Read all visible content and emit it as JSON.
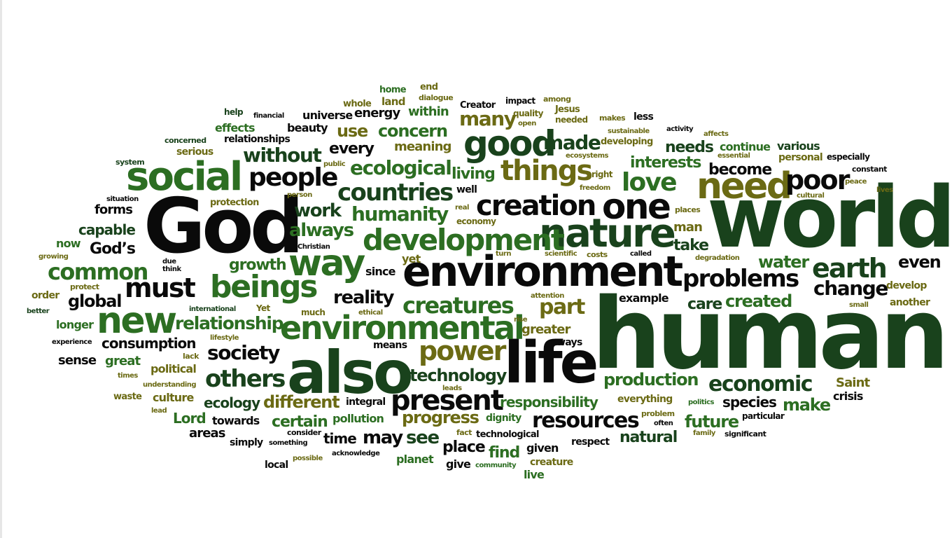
{
  "colors": {
    "black": "#0a0a0a",
    "dark_green": "#19421c",
    "mid_green": "#2c6e22",
    "light_green": "#4a8a2a",
    "olive": "#6b6a14"
  },
  "words": [
    {
      "text": "human",
      "c": "dark_green"
    },
    {
      "text": "world",
      "c": "dark_green"
    },
    {
      "text": "God",
      "c": "black"
    },
    {
      "text": "environment",
      "c": "black"
    },
    {
      "text": "also",
      "c": "dark_green"
    },
    {
      "text": "life",
      "c": "black"
    },
    {
      "text": "nature",
      "c": "dark_green"
    },
    {
      "text": "social",
      "c": "mid_green"
    },
    {
      "text": "environmental",
      "c": "mid_green"
    },
    {
      "text": "good",
      "c": "dark_green"
    },
    {
      "text": "need",
      "c": "olive"
    },
    {
      "text": "creation",
      "c": "black"
    },
    {
      "text": "one",
      "c": "black"
    },
    {
      "text": "new",
      "c": "mid_green"
    },
    {
      "text": "way",
      "c": "mid_green"
    },
    {
      "text": "beings",
      "c": "mid_green"
    },
    {
      "text": "development",
      "c": "mid_green"
    },
    {
      "text": "things",
      "c": "olive"
    },
    {
      "text": "present",
      "c": "black"
    },
    {
      "text": "power",
      "c": "olive"
    },
    {
      "text": "must",
      "c": "black"
    },
    {
      "text": "people",
      "c": "black"
    },
    {
      "text": "countries",
      "c": "dark_green"
    },
    {
      "text": "poor",
      "c": "black"
    },
    {
      "text": "earth",
      "c": "dark_green"
    },
    {
      "text": "problems",
      "c": "black"
    },
    {
      "text": "common",
      "c": "mid_green"
    },
    {
      "text": "love",
      "c": "mid_green"
    },
    {
      "text": "creatures",
      "c": "mid_green"
    },
    {
      "text": "economic",
      "c": "dark_green"
    },
    {
      "text": "others",
      "c": "dark_green"
    },
    {
      "text": "society",
      "c": "black"
    },
    {
      "text": "humanity",
      "c": "mid_green"
    },
    {
      "text": "resources",
      "c": "black"
    },
    {
      "text": "ecological",
      "c": "mid_green"
    },
    {
      "text": "made",
      "c": "dark_green"
    },
    {
      "text": "relationship",
      "c": "mid_green"
    },
    {
      "text": "reality",
      "c": "black"
    },
    {
      "text": "part",
      "c": "olive"
    },
    {
      "text": "without",
      "c": "dark_green"
    },
    {
      "text": "different",
      "c": "olive"
    },
    {
      "text": "technology",
      "c": "dark_green"
    },
    {
      "text": "production",
      "c": "mid_green"
    },
    {
      "text": "change",
      "c": "black"
    },
    {
      "text": "progress",
      "c": "olive"
    },
    {
      "text": "many",
      "c": "olive"
    },
    {
      "text": "always",
      "c": "mid_green"
    },
    {
      "text": "growth",
      "c": "mid_green"
    },
    {
      "text": "global",
      "c": "black"
    },
    {
      "text": "work",
      "c": "dark_green"
    },
    {
      "text": "use",
      "c": "olive"
    },
    {
      "text": "concern",
      "c": "mid_green"
    },
    {
      "text": "even",
      "c": "black"
    },
    {
      "text": "make",
      "c": "mid_green"
    },
    {
      "text": "future",
      "c": "mid_green"
    },
    {
      "text": "water",
      "c": "mid_green"
    },
    {
      "text": "created",
      "c": "mid_green"
    },
    {
      "text": "care",
      "c": "dark_green"
    },
    {
      "text": "take",
      "c": "dark_green"
    },
    {
      "text": "needs",
      "c": "dark_green"
    },
    {
      "text": "become",
      "c": "black"
    },
    {
      "text": "interests",
      "c": "mid_green"
    },
    {
      "text": "living",
      "c": "mid_green"
    },
    {
      "text": "every",
      "c": "black"
    },
    {
      "text": "consumption",
      "c": "black"
    },
    {
      "text": "responsibility",
      "c": "mid_green"
    },
    {
      "text": "ecology",
      "c": "dark_green"
    },
    {
      "text": "certain",
      "c": "mid_green"
    },
    {
      "text": "species",
      "c": "black"
    },
    {
      "text": "may",
      "c": "black"
    },
    {
      "text": "see",
      "c": "dark_green"
    },
    {
      "text": "time",
      "c": "black"
    },
    {
      "text": "place",
      "c": "black"
    },
    {
      "text": "find",
      "c": "mid_green"
    },
    {
      "text": "natural",
      "c": "dark_green"
    },
    {
      "text": "God’s",
      "c": "black"
    },
    {
      "text": "capable",
      "c": "dark_green"
    },
    {
      "text": "forms",
      "c": "black"
    },
    {
      "text": "longer",
      "c": "mid_green"
    },
    {
      "text": "sense",
      "c": "black"
    },
    {
      "text": "great",
      "c": "mid_green"
    },
    {
      "text": "culture",
      "c": "olive"
    },
    {
      "text": "political",
      "c": "olive"
    },
    {
      "text": "Lord",
      "c": "mid_green"
    },
    {
      "text": "towards",
      "c": "black"
    },
    {
      "text": "areas",
      "c": "black"
    },
    {
      "text": "simply",
      "c": "black"
    },
    {
      "text": "pollution",
      "c": "mid_green"
    },
    {
      "text": "integral",
      "c": "black"
    },
    {
      "text": "greater",
      "c": "olive"
    },
    {
      "text": "ways",
      "c": "black"
    },
    {
      "text": "means",
      "c": "black"
    },
    {
      "text": "yet",
      "c": "olive"
    },
    {
      "text": "since",
      "c": "black"
    },
    {
      "text": "example",
      "c": "black"
    },
    {
      "text": "Saint",
      "c": "olive"
    },
    {
      "text": "crisis",
      "c": "black"
    },
    {
      "text": "meaning",
      "c": "olive"
    },
    {
      "text": "within",
      "c": "mid_green"
    },
    {
      "text": "energy",
      "c": "black"
    },
    {
      "text": "universe",
      "c": "black"
    },
    {
      "text": "beauty",
      "c": "black"
    },
    {
      "text": "effects",
      "c": "mid_green"
    },
    {
      "text": "serious",
      "c": "olive"
    },
    {
      "text": "relationships",
      "c": "black"
    },
    {
      "text": "man",
      "c": "olive"
    },
    {
      "text": "now",
      "c": "mid_green"
    },
    {
      "text": "continue",
      "c": "mid_green"
    },
    {
      "text": "various",
      "c": "dark_green"
    },
    {
      "text": "personal",
      "c": "olive"
    },
    {
      "text": "develop",
      "c": "olive"
    },
    {
      "text": "another",
      "c": "olive"
    },
    {
      "text": "dignity",
      "c": "mid_green"
    },
    {
      "text": "give",
      "c": "black"
    },
    {
      "text": "planet",
      "c": "mid_green"
    },
    {
      "text": "live",
      "c": "mid_green"
    },
    {
      "text": "creature",
      "c": "olive"
    },
    {
      "text": "given",
      "c": "black"
    },
    {
      "text": "respect",
      "c": "black"
    },
    {
      "text": "local",
      "c": "black"
    },
    {
      "text": "everything",
      "c": "olive"
    },
    {
      "text": "order",
      "c": "olive"
    },
    {
      "text": "Yet",
      "c": "olive"
    },
    {
      "text": "much",
      "c": "olive"
    },
    {
      "text": "well",
      "c": "black"
    },
    {
      "text": "right",
      "c": "olive"
    },
    {
      "text": "less",
      "c": "black"
    },
    {
      "text": "home",
      "c": "mid_green"
    },
    {
      "text": "end",
      "c": "olive"
    },
    {
      "text": "land",
      "c": "olive"
    },
    {
      "text": "whole",
      "c": "olive"
    },
    {
      "text": "help",
      "c": "dark_green"
    },
    {
      "text": "impact",
      "c": "black"
    },
    {
      "text": "Creator",
      "c": "black"
    },
    {
      "text": "Jesus",
      "c": "olive"
    },
    {
      "text": "needed",
      "c": "olive"
    },
    {
      "text": "quality",
      "c": "olive"
    },
    {
      "text": "developing",
      "c": "olive"
    },
    {
      "text": "especially",
      "c": "black"
    },
    {
      "text": "constant",
      "c": "black"
    },
    {
      "text": "technological",
      "c": "black"
    },
    {
      "text": "particular",
      "c": "black"
    },
    {
      "text": "significant",
      "c": "black"
    },
    {
      "text": "concerned",
      "c": "dark_green"
    },
    {
      "text": "system",
      "c": "dark_green"
    },
    {
      "text": "financial",
      "c": "black"
    },
    {
      "text": "protection",
      "c": "olive"
    },
    {
      "text": "situation",
      "c": "black"
    },
    {
      "text": "growing",
      "c": "olive"
    },
    {
      "text": "Christian",
      "c": "black"
    },
    {
      "text": "think",
      "c": "black"
    },
    {
      "text": "due",
      "c": "black"
    },
    {
      "text": "protect",
      "c": "olive"
    },
    {
      "text": "international",
      "c": "dark_green"
    },
    {
      "text": "better",
      "c": "dark_green"
    },
    {
      "text": "experience",
      "c": "black"
    },
    {
      "text": "lack",
      "c": "olive"
    },
    {
      "text": "times",
      "c": "olive"
    },
    {
      "text": "understanding",
      "c": "olive"
    },
    {
      "text": "waste",
      "c": "olive"
    },
    {
      "text": "lead",
      "c": "olive"
    },
    {
      "text": "lifestyle",
      "c": "olive"
    },
    {
      "text": "ethical",
      "c": "olive"
    },
    {
      "text": "leads",
      "c": "olive"
    },
    {
      "text": "attention",
      "c": "olive"
    },
    {
      "text": "rise",
      "c": "olive"
    },
    {
      "text": "consider",
      "c": "black"
    },
    {
      "text": "something",
      "c": "black"
    },
    {
      "text": "possible",
      "c": "olive"
    },
    {
      "text": "acknowledge",
      "c": "black"
    },
    {
      "text": "fact",
      "c": "olive"
    },
    {
      "text": "community",
      "c": "mid_green"
    },
    {
      "text": "dialogue",
      "c": "olive"
    },
    {
      "text": "among",
      "c": "olive"
    },
    {
      "text": "makes",
      "c": "olive"
    },
    {
      "text": "sustainable",
      "c": "olive"
    },
    {
      "text": "activity",
      "c": "black"
    },
    {
      "text": "affects",
      "c": "olive"
    },
    {
      "text": "ecosystems",
      "c": "olive"
    },
    {
      "text": "public",
      "c": "olive"
    },
    {
      "text": "person",
      "c": "olive"
    },
    {
      "text": "freedom",
      "c": "olive"
    },
    {
      "text": "cultural",
      "c": "olive"
    },
    {
      "text": "peace",
      "c": "olive"
    },
    {
      "text": "lives",
      "c": "olive"
    },
    {
      "text": "essential",
      "c": "olive"
    },
    {
      "text": "real",
      "c": "olive"
    },
    {
      "text": "economy",
      "c": "olive"
    },
    {
      "text": "places",
      "c": "olive"
    },
    {
      "text": "turn",
      "c": "olive"
    },
    {
      "text": "scientific",
      "c": "olive"
    },
    {
      "text": "costs",
      "c": "olive"
    },
    {
      "text": "called",
      "c": "black"
    },
    {
      "text": "degradation",
      "c": "olive"
    },
    {
      "text": "open",
      "c": "olive"
    },
    {
      "text": "small",
      "c": "olive"
    },
    {
      "text": "politics",
      "c": "mid_green"
    },
    {
      "text": "problem",
      "c": "olive"
    },
    {
      "text": "often",
      "c": "black"
    },
    {
      "text": "family",
      "c": "olive"
    }
  ]
}
